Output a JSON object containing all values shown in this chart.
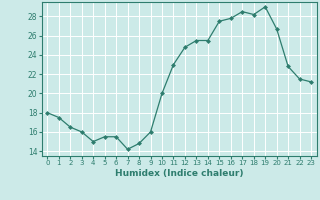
{
  "x": [
    0,
    1,
    2,
    3,
    4,
    5,
    6,
    7,
    8,
    9,
    10,
    11,
    12,
    13,
    14,
    15,
    16,
    17,
    18,
    19,
    20,
    21,
    22,
    23
  ],
  "y": [
    18,
    17.5,
    16.5,
    16,
    15,
    15.5,
    15.5,
    14.2,
    14.8,
    16.0,
    20.0,
    23.0,
    24.8,
    25.5,
    25.5,
    27.5,
    27.8,
    28.5,
    28.2,
    29.0,
    26.7,
    22.8,
    21.5,
    21.2
  ],
  "xlabel": "Humidex (Indice chaleur)",
  "xlim": [
    -0.5,
    23.5
  ],
  "ylim": [
    13.5,
    29.5
  ],
  "xticks": [
    0,
    1,
    2,
    3,
    4,
    5,
    6,
    7,
    8,
    9,
    10,
    11,
    12,
    13,
    14,
    15,
    16,
    17,
    18,
    19,
    20,
    21,
    22,
    23
  ],
  "yticks": [
    14,
    16,
    18,
    20,
    22,
    24,
    26,
    28
  ],
  "line_color": "#2e7d6e",
  "bg_color": "#cceae8",
  "grid_color": "#ffffff"
}
